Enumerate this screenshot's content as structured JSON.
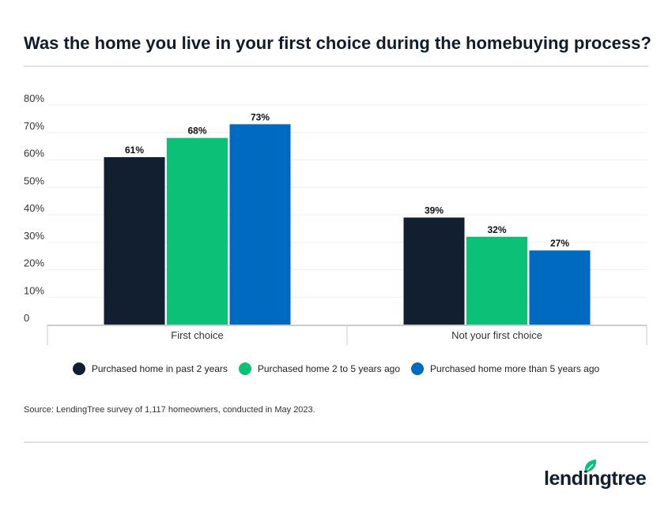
{
  "chart_data": {
    "type": "bar",
    "title": "Was the home you live in your first choice during the homebuying process?",
    "categories": [
      "First choice",
      "Not your first choice"
    ],
    "series": [
      {
        "name": "Purchased home in past 2 years",
        "values": [
          61,
          39
        ],
        "color": "#111f30"
      },
      {
        "name": "Purchased home 2 to 5 years ago",
        "values": [
          68,
          32
        ],
        "color": "#0cc177"
      },
      {
        "name": "Purchased home more than 5 years ago",
        "values": [
          73,
          27
        ],
        "color": "#0069c0"
      }
    ],
    "yticks": [
      "0",
      "10%",
      "20%",
      "30%",
      "40%",
      "50%",
      "60%",
      "70%",
      "80%"
    ],
    "ylim": [
      0,
      80
    ],
    "grid": true,
    "legend": "bottom",
    "xlabel": "",
    "ylabel": ""
  },
  "source": "Source: LendingTree survey of 1,117 homeowners, conducted in May 2023.",
  "logo": "lendingtree"
}
